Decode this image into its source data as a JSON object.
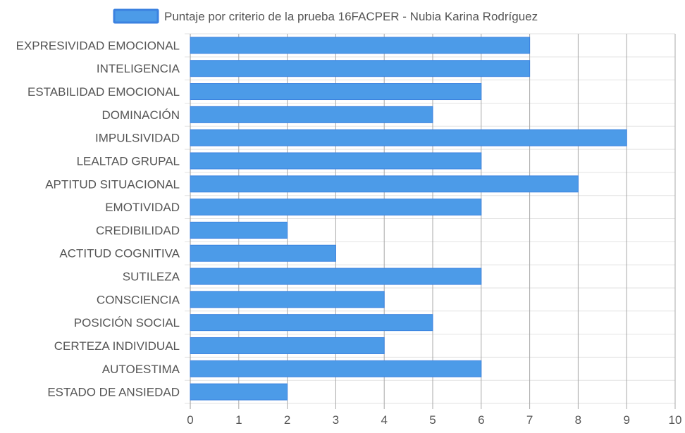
{
  "chart_data": {
    "type": "bar",
    "orientation": "horizontal",
    "categories": [
      "EXPRESIVIDAD EMOCIONAL",
      "INTELIGENCIA",
      "ESTABILIDAD EMOCIONAL",
      "DOMINACIÓN",
      "IMPULSIVIDAD",
      "LEALTAD GRUPAL",
      "APTITUD SITUACIONAL",
      "EMOTIVIDAD",
      "CREDIBILIDAD",
      "ACTITUD COGNITIVA",
      "SUTILEZA",
      "CONSCIENCIA",
      "POSICIÓN SOCIAL",
      "CERTEZA INDIVIDUAL",
      "AUTOESTIMA",
      "ESTADO DE ANSIEDAD"
    ],
    "series": [
      {
        "name": "Puntaje por criterio de la prueba 16FACPER - Nubia Karina Rodríguez",
        "values": [
          7,
          7,
          6,
          5,
          9,
          6,
          8,
          6,
          2,
          3,
          6,
          4,
          5,
          4,
          6,
          2
        ],
        "color": "#4c9be8",
        "border_color": "#3b82e0"
      }
    ],
    "xlim": [
      0,
      10
    ],
    "x_ticks": [
      "0",
      "1",
      "2",
      "3",
      "4",
      "5",
      "6",
      "7",
      "8",
      "9",
      "10"
    ],
    "grid": true,
    "legend_position": "top",
    "xlabel": "",
    "ylabel": ""
  }
}
